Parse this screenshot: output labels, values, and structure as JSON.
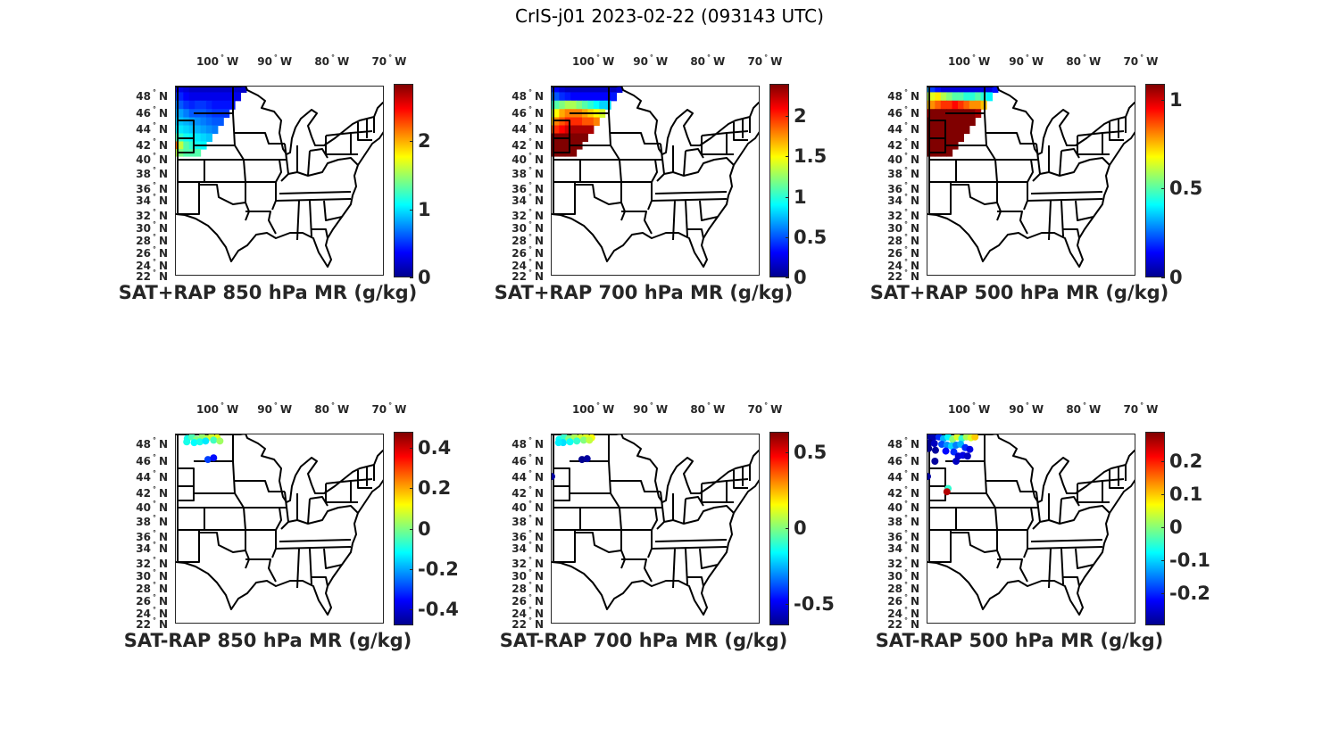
{
  "figure": {
    "title": "CrIS-j01 2023-02-22 (093143 UTC)"
  },
  "axes": {
    "lon_ticks": [
      {
        "value": -100,
        "label": "100",
        "suffix": "W"
      },
      {
        "value": -90,
        "label": "90",
        "suffix": "W"
      },
      {
        "value": -80,
        "label": "80",
        "suffix": "W"
      },
      {
        "value": -70,
        "label": "70",
        "suffix": "W"
      }
    ],
    "lat_ticks": [
      {
        "value": 48,
        "label": "48",
        "suffix": "N"
      },
      {
        "value": 46,
        "label": "46",
        "suffix": "N"
      },
      {
        "value": 44,
        "label": "44",
        "suffix": "N"
      },
      {
        "value": 42,
        "label": "42",
        "suffix": "N"
      },
      {
        "value": 40,
        "label": "40",
        "suffix": "N"
      },
      {
        "value": 38,
        "label": "38",
        "suffix": "N"
      },
      {
        "value": 36,
        "label": "36",
        "suffix": "N"
      },
      {
        "value": 34,
        "label": "34",
        "suffix": "N"
      },
      {
        "value": 32,
        "label": "32",
        "suffix": "N"
      },
      {
        "value": 30,
        "label": "30",
        "suffix": "N"
      },
      {
        "value": 28,
        "label": "28",
        "suffix": "N"
      },
      {
        "value": 26,
        "label": "26",
        "suffix": "N"
      },
      {
        "value": 24,
        "label": "24",
        "suffix": "N"
      },
      {
        "value": 22,
        "label": "22",
        "suffix": "N"
      }
    ],
    "lon_range": [
      -106.8,
      -70.3
    ],
    "lat_range": [
      22,
      49.2
    ]
  },
  "chart_data": [
    {
      "type": "heatmap",
      "title": "SAT+RAP 850 hPa MR (g/kg)",
      "clim": [
        0,
        2.84
      ],
      "cbar_ticks": [
        {
          "v": 0,
          "l": "0"
        },
        {
          "v": 1,
          "l": "1"
        },
        {
          "v": 2,
          "l": "2"
        }
      ],
      "grid": {
        "lon_start": -107,
        "step": 1,
        "rows": [
          {
            "lat": 49,
            "values": [
              0.3,
              0.3,
              0.25,
              0.2,
              0.2,
              0.2,
              0.2,
              0.2,
              0.2,
              0.2,
              0.2,
              0.2,
              0.2
            ]
          },
          {
            "lat": 48,
            "values": [
              0.5,
              0.45,
              0.35,
              0.3,
              0.3,
              0.3,
              0.3,
              0.3,
              0.3,
              0.3,
              0.3,
              0.3
            ]
          },
          {
            "lat": 47,
            "values": [
              0.7,
              0.6,
              0.5,
              0.45,
              0.5,
              0.5,
              0.45,
              0.4,
              0.4,
              0.4,
              0.4
            ]
          },
          {
            "lat": 46,
            "values": [
              0.8,
              0.8,
              0.7,
              0.6,
              0.6,
              0.6,
              0.55,
              0.5,
              0.5,
              0.5
            ]
          },
          {
            "lat": 45,
            "values": [
              0.9,
              0.9,
              0.85,
              0.8,
              0.75,
              0.7,
              0.65,
              0.6,
              0.6
            ]
          },
          {
            "lat": 44,
            "values": [
              1.0,
              1.0,
              0.95,
              0.9,
              0.85,
              0.8,
              0.75,
              0.7
            ]
          },
          {
            "lat": 43,
            "values": [
              1.3,
              1.2,
              1.1,
              1.05,
              1.0,
              0.95,
              0.9
            ]
          },
          {
            "lat": 42,
            "values": [
              2.2,
              1.6,
              1.3,
              1.2,
              1.1,
              1.05
            ]
          },
          {
            "lat": 41,
            "values": [
              1.6,
              1.4,
              1.3,
              1.3,
              1.3
            ]
          }
        ]
      }
    },
    {
      "type": "heatmap",
      "title": "SAT+RAP 700 hPa MR (g/kg)",
      "clim": [
        0,
        2.4
      ],
      "cbar_ticks": [
        {
          "v": 0,
          "l": "0"
        },
        {
          "v": 0.5,
          "l": "0.5"
        },
        {
          "v": 1,
          "l": "1"
        },
        {
          "v": 1.5,
          "l": "1.5"
        },
        {
          "v": 2,
          "l": "2"
        }
      ],
      "grid": {
        "lon_start": -107,
        "step": 1,
        "rows": [
          {
            "lat": 49,
            "values": [
              0.4,
              0.3,
              0.2,
              0.15,
              0.15,
              0.15,
              0.15,
              0.15,
              0.15,
              0.15,
              0.15,
              0.15,
              0.2
            ]
          },
          {
            "lat": 48,
            "values": [
              0.6,
              0.5,
              0.4,
              0.35,
              0.3,
              0.3,
              0.3,
              0.3,
              0.3,
              0.3,
              0.3,
              0.35
            ]
          },
          {
            "lat": 47,
            "values": [
              1.0,
              1.1,
              1.2,
              1.3,
              1.3,
              1.2,
              1.1,
              1.0,
              0.9,
              0.8,
              0.8
            ]
          },
          {
            "lat": 46,
            "values": [
              1.3,
              1.5,
              1.7,
              1.8,
              1.8,
              1.8,
              1.7,
              1.6,
              1.5,
              1.4
            ]
          },
          {
            "lat": 45,
            "values": [
              1.6,
              1.8,
              1.9,
              2.0,
              2.0,
              2.0,
              1.9,
              1.9,
              1.8
            ]
          },
          {
            "lat": 44,
            "values": [
              1.9,
              2.0,
              2.1,
              2.2,
              2.3,
              2.3,
              2.3,
              2.3
            ]
          },
          {
            "lat": 43,
            "values": [
              2.4,
              2.4,
              2.4,
              2.4,
              2.4,
              2.4,
              2.4
            ]
          },
          {
            "lat": 42,
            "values": [
              2.4,
              2.4,
              2.4,
              2.4,
              2.4,
              2.4
            ]
          },
          {
            "lat": 41,
            "values": [
              2.4,
              2.4,
              2.4,
              2.4,
              2.4
            ]
          }
        ]
      }
    },
    {
      "type": "heatmap",
      "title": "SAT+RAP 500 hPa MR (g/kg)",
      "clim": [
        0,
        1.09
      ],
      "cbar_ticks": [
        {
          "v": 0,
          "l": "0"
        },
        {
          "v": 0.5,
          "l": "0.5"
        },
        {
          "v": 1,
          "l": "1"
        }
      ],
      "grid": {
        "lon_start": -107,
        "step": 1,
        "rows": [
          {
            "lat": 49,
            "values": [
              0.3,
              0.2,
              0.15,
              0.1,
              0.1,
              0.1,
              0.1,
              0.1,
              0.1,
              0.1,
              0.1,
              0.1,
              0.15
            ]
          },
          {
            "lat": 48,
            "values": [
              0.6,
              0.65,
              0.7,
              0.6,
              0.55,
              0.5,
              0.5,
              0.45,
              0.45,
              0.5,
              0.45,
              0.4
            ]
          },
          {
            "lat": 47,
            "values": [
              0.75,
              0.8,
              0.85,
              0.9,
              0.9,
              0.95,
              0.9,
              0.85,
              0.8,
              0.8,
              0.75
            ]
          },
          {
            "lat": 46,
            "values": [
              1.0,
              1.1,
              1.1,
              1.1,
              1.1,
              1.1,
              1.1,
              1.1,
              1.1,
              1.05
            ]
          },
          {
            "lat": 45,
            "values": [
              1.1,
              1.1,
              1.1,
              1.1,
              1.1,
              1.1,
              1.1,
              1.1,
              1.1
            ]
          },
          {
            "lat": 44,
            "values": [
              1.1,
              1.1,
              1.1,
              1.1,
              1.1,
              1.1,
              1.1,
              1.1
            ]
          },
          {
            "lat": 43,
            "values": [
              1.1,
              1.1,
              1.1,
              1.1,
              1.1,
              1.1,
              1.1
            ]
          },
          {
            "lat": 42,
            "values": [
              1.1,
              1.1,
              1.1,
              1.1,
              1.1,
              1.1
            ]
          },
          {
            "lat": 41,
            "values": [
              1.1,
              1.1,
              1.1,
              1.1,
              1.1
            ]
          }
        ]
      }
    },
    {
      "type": "scatter",
      "title": "SAT-RAP 850 hPa MR (g/kg)",
      "clim": [
        -0.48,
        0.48
      ],
      "cbar_ticks": [
        {
          "v": 0.4,
          "l": "0.4"
        },
        {
          "v": 0.2,
          "l": "0.2"
        },
        {
          "v": 0,
          "l": "0"
        },
        {
          "v": -0.2,
          "l": "-0.2"
        },
        {
          "v": -0.4,
          "l": "-0.4"
        }
      ],
      "points": [
        [
          -104.8,
          48.7,
          -0.1
        ],
        [
          -104,
          48.9,
          -0.05
        ],
        [
          -103.2,
          48.6,
          0
        ],
        [
          -102.2,
          48.9,
          0.02
        ],
        [
          -101.4,
          48.7,
          0.05
        ],
        [
          -100.6,
          48.9,
          0.08
        ],
        [
          -99.6,
          48.8,
          0.1
        ],
        [
          -103.6,
          48.2,
          -0.12
        ],
        [
          -102.6,
          48.3,
          -0.1
        ],
        [
          -101.6,
          48.4,
          -0.14
        ],
        [
          -100.2,
          48.5,
          -0.06
        ],
        [
          -99.1,
          48.4,
          0.03
        ],
        [
          -104.9,
          48.3,
          -0.1
        ],
        [
          -101.2,
          46.2,
          -0.3
        ],
        [
          -100.2,
          46.4,
          -0.35
        ]
      ]
    },
    {
      "type": "scatter",
      "title": "SAT-RAP 700 hPa MR (g/kg)",
      "clim": [
        -0.64,
        0.635
      ],
      "cbar_ticks": [
        {
          "v": 0.5,
          "l": "0.5"
        },
        {
          "v": 0,
          "l": "0"
        },
        {
          "v": -0.5,
          "l": "-0.5"
        }
      ],
      "points": [
        [
          -105.5,
          48.6,
          -0.15
        ],
        [
          -104.6,
          48.9,
          -0.1
        ],
        [
          -103.8,
          48.7,
          0
        ],
        [
          -102.8,
          48.9,
          0.05
        ],
        [
          -101.8,
          48.8,
          0.1
        ],
        [
          -100.8,
          48.9,
          0.12
        ],
        [
          -99.8,
          48.8,
          0.15
        ],
        [
          -104.8,
          48.2,
          -0.2
        ],
        [
          -103.6,
          48.3,
          -0.15
        ],
        [
          -102.4,
          48.4,
          -0.1
        ],
        [
          -101.2,
          48.5,
          0
        ],
        [
          -100.2,
          48.5,
          0.08
        ],
        [
          -105.6,
          48.2,
          -0.18
        ],
        [
          -101.5,
          46.2,
          -0.62
        ],
        [
          -100.6,
          46.3,
          -0.6
        ],
        [
          -106.8,
          44.1,
          -0.6
        ]
      ]
    },
    {
      "type": "scatter",
      "title": "SAT-RAP 500 hPa MR (g/kg)",
      "clim": [
        -0.297,
        0.29
      ],
      "cbar_ticks": [
        {
          "v": 0.2,
          "l": "0.2"
        },
        {
          "v": 0.1,
          "l": "0.1"
        },
        {
          "v": 0,
          "l": "0"
        },
        {
          "v": -0.1,
          "l": "-0.1"
        },
        {
          "v": -0.2,
          "l": "-0.2"
        }
      ],
      "points": [
        [
          -106.5,
          49,
          -0.28
        ],
        [
          -105.8,
          48.8,
          -0.27
        ],
        [
          -106.4,
          48.2,
          -0.29
        ],
        [
          -105.6,
          48.1,
          -0.26
        ],
        [
          -106.6,
          47.5,
          -0.29
        ],
        [
          -105.4,
          47.3,
          -0.28
        ],
        [
          -104.8,
          48.9,
          -0.2
        ],
        [
          -104,
          48.7,
          -0.12
        ],
        [
          -103.2,
          48.9,
          -0.08
        ],
        [
          -102.4,
          48.6,
          0
        ],
        [
          -101.6,
          48.9,
          0.05
        ],
        [
          -100.8,
          48.7,
          -0.05
        ],
        [
          -100,
          48.9,
          0.02
        ],
        [
          -99.2,
          48.8,
          0.05
        ],
        [
          -98.5,
          48.9,
          0.1
        ],
        [
          -104.3,
          48,
          -0.18
        ],
        [
          -103.4,
          47.9,
          -0.14
        ],
        [
          -102.6,
          47.8,
          -0.1
        ],
        [
          -101.8,
          47.9,
          -0.15
        ],
        [
          -101,
          48,
          -0.12
        ],
        [
          -100.2,
          47.6,
          -0.2
        ],
        [
          -99.4,
          47.4,
          -0.24
        ],
        [
          -103.6,
          47.2,
          -0.22
        ],
        [
          -102.2,
          47.1,
          -0.2
        ],
        [
          -101.4,
          46.6,
          -0.25
        ],
        [
          -100.6,
          46.7,
          -0.24
        ],
        [
          -99.8,
          46.6,
          -0.26
        ],
        [
          -105.5,
          46,
          -0.28
        ],
        [
          -101.8,
          46,
          -0.26
        ],
        [
          -106.8,
          44.1,
          -0.28
        ],
        [
          -103.2,
          42.6,
          -0.05
        ],
        [
          -103.4,
          42.2,
          0.26
        ]
      ]
    }
  ]
}
